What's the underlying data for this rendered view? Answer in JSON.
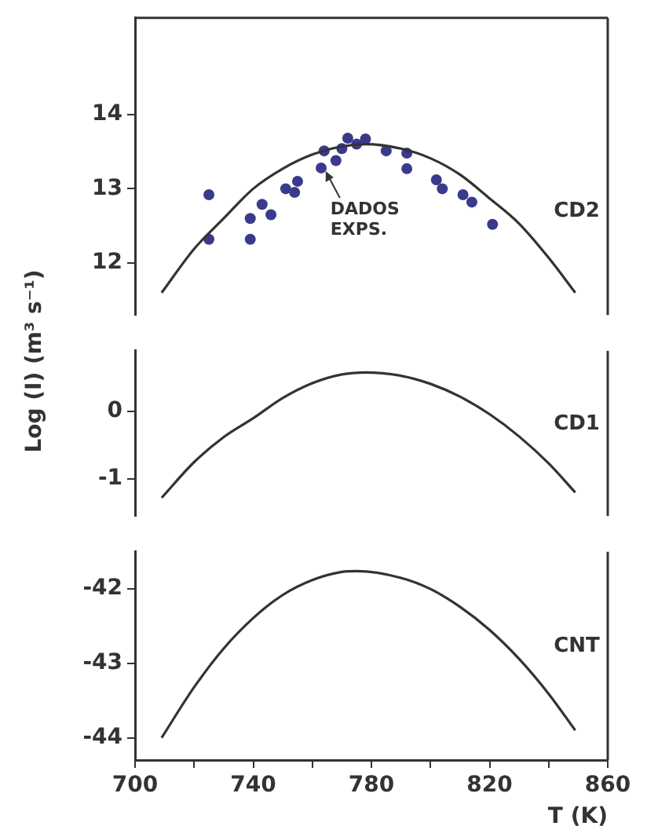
{
  "chart_data": [
    {
      "type": "line",
      "xlim": [
        700,
        860
      ],
      "ylim": [
        11.3,
        15.3
      ],
      "yticks": [
        12,
        13,
        14
      ],
      "tick_labels": "y",
      "marker": "none",
      "series": [
        {
          "name": "CD2",
          "type": "line",
          "color": "#333333",
          "x": [
            709,
            720,
            730,
            740,
            750,
            760,
            770,
            778,
            790,
            800,
            810,
            820,
            830,
            840,
            849
          ],
          "values": [
            11.6,
            12.19,
            12.6,
            13.0,
            13.27,
            13.46,
            13.57,
            13.6,
            13.54,
            13.41,
            13.19,
            12.87,
            12.53,
            12.07,
            11.6
          ]
        },
        {
          "type": "scatter",
          "marker": "circle",
          "color": "#3a3a8c",
          "x": [
            725,
            725,
            739,
            739,
            743,
            746,
            751,
            754,
            755,
            763,
            764,
            768,
            770,
            772,
            775,
            778,
            785,
            792,
            792,
            802,
            804,
            811,
            814,
            821
          ],
          "values": [
            12.92,
            12.32,
            12.6,
            12.32,
            12.79,
            12.65,
            13.0,
            12.95,
            13.1,
            13.28,
            13.51,
            13.38,
            13.54,
            13.68,
            13.6,
            13.67,
            13.51,
            13.48,
            13.27,
            13.12,
            13.0,
            12.92,
            12.82,
            12.52
          ]
        }
      ],
      "annotations": [
        {
          "text": "DADOS EXPS.",
          "x": 764,
          "y": 13.3
        }
      ]
    },
    {
      "type": "line",
      "xlim": [
        700,
        860
      ],
      "ylim": [
        -1.55,
        0.9
      ],
      "yticks": [
        0,
        -1
      ],
      "tick_labels": "y",
      "marker": "none",
      "ylabel": "Log (I)   (m³ s⁻¹)",
      "series": [
        {
          "name": "CD1",
          "type": "line",
          "color": "#333333",
          "x": [
            709,
            720,
            730,
            740,
            750,
            760,
            770,
            778,
            790,
            800,
            810,
            820,
            830,
            840,
            849
          ],
          "values": [
            -1.28,
            -0.75,
            -0.38,
            -0.1,
            0.2,
            0.42,
            0.55,
            0.58,
            0.53,
            0.41,
            0.22,
            -0.04,
            -0.37,
            -0.77,
            -1.2
          ]
        }
      ]
    },
    {
      "type": "line",
      "xlim": [
        700,
        860
      ],
      "xticks": [
        700,
        {
          "value": 720,
          "label": null
        },
        740,
        {
          "value": 760,
          "label": null
        },
        780,
        {
          "value": 800,
          "label": null
        },
        820,
        {
          "value": 840,
          "label": null
        },
        860
      ],
      "ylim": [
        -44.3,
        -41.5
      ],
      "yticks": [
        -42,
        -43,
        -44
      ],
      "marker": "none",
      "xlabel": "T (K)",
      "series": [
        {
          "name": "CNT",
          "type": "line",
          "color": "#333333",
          "x": [
            709,
            720,
            730,
            740,
            750,
            760,
            770,
            775,
            790,
            800,
            810,
            820,
            830,
            840,
            849
          ],
          "values": [
            -44.0,
            -43.32,
            -42.8,
            -42.39,
            -42.08,
            -41.88,
            -41.77,
            -41.76,
            -41.85,
            -42.0,
            -42.24,
            -42.55,
            -42.94,
            -43.41,
            -43.9
          ]
        }
      ]
    }
  ]
}
